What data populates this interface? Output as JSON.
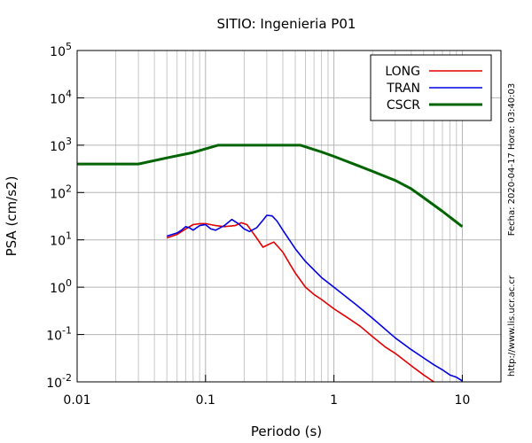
{
  "chart_data": {
    "type": "line",
    "title": "SITIO: Ingenieria P01",
    "xlabel": "Periodo (s)",
    "ylabel": "PSA (cm/s2)",
    "x_scale": "log",
    "y_scale": "log",
    "xlim": [
      0.01,
      20
    ],
    "ylim": [
      0.01,
      100000
    ],
    "x_ticks": [
      {
        "value": 0.01,
        "label": "0.01"
      },
      {
        "value": 0.1,
        "label": "0.1"
      },
      {
        "value": 1,
        "label": "1"
      },
      {
        "value": 10,
        "label": "10"
      }
    ],
    "y_ticks": [
      {
        "value": 0.01,
        "base": "10",
        "exp": "-2"
      },
      {
        "value": 0.1,
        "base": "10",
        "exp": "-1"
      },
      {
        "value": 1,
        "base": "10",
        "exp": "0"
      },
      {
        "value": 10,
        "base": "10",
        "exp": "1"
      },
      {
        "value": 100,
        "base": "10",
        "exp": "2"
      },
      {
        "value": 1000,
        "base": "10",
        "exp": "3"
      },
      {
        "value": 10000,
        "base": "10",
        "exp": "4"
      },
      {
        "value": 100000,
        "base": "10",
        "exp": "5"
      }
    ],
    "grid": true,
    "legend_position": "top-right",
    "series": [
      {
        "name": "LONG",
        "color": "#e00000",
        "x": [
          0.05,
          0.06,
          0.07,
          0.08,
          0.09,
          0.1,
          0.12,
          0.14,
          0.17,
          0.19,
          0.21,
          0.23,
          0.25,
          0.28,
          0.31,
          0.34,
          0.37,
          0.4,
          0.45,
          0.5,
          0.6,
          0.7,
          0.8,
          1.0,
          1.3,
          1.6,
          2.0,
          2.5,
          3.0,
          4.0,
          5.0,
          6.0
        ],
        "y": [
          11,
          13,
          17,
          21,
          22,
          22,
          20,
          19,
          20,
          23,
          21,
          15,
          11,
          7,
          8,
          9,
          7,
          5.5,
          3.2,
          2.0,
          1.0,
          0.7,
          0.55,
          0.35,
          0.22,
          0.15,
          0.09,
          0.055,
          0.04,
          0.022,
          0.014,
          0.0095
        ]
      },
      {
        "name": "TRAN",
        "color": "#0000e0",
        "x": [
          0.05,
          0.06,
          0.065,
          0.07,
          0.075,
          0.08,
          0.09,
          0.1,
          0.11,
          0.12,
          0.13,
          0.14,
          0.16,
          0.18,
          0.2,
          0.22,
          0.25,
          0.28,
          0.3,
          0.33,
          0.36,
          0.4,
          0.5,
          0.6,
          0.8,
          1.0,
          1.5,
          2.0,
          3.0,
          4.0,
          5.0,
          6.0,
          7.0,
          8.0,
          9.0,
          10.0
        ],
        "y": [
          12,
          14,
          16,
          19,
          18,
          16,
          20,
          21,
          17,
          16,
          18,
          20,
          27,
          22,
          17,
          15,
          18,
          26,
          33,
          32,
          25,
          16,
          6.5,
          3.5,
          1.6,
          1.0,
          0.42,
          0.22,
          0.085,
          0.048,
          0.032,
          0.023,
          0.018,
          0.014,
          0.0125,
          0.0105
        ]
      },
      {
        "name": "CSCR",
        "color": "#006400",
        "x": [
          0.01,
          0.03,
          0.05,
          0.08,
          0.125,
          0.55,
          0.8,
          1.0,
          1.5,
          2.0,
          3.0,
          4.0,
          5.0,
          7.0,
          10.0
        ],
        "y": [
          400,
          400,
          540,
          700,
          1000,
          1000,
          720,
          580,
          380,
          280,
          180,
          120,
          78,
          40,
          19
        ]
      }
    ],
    "side_text_date": "Fecha: 2020-04-17 Hora: 03:40:03",
    "side_text_url": "http://www.lis.ucr.ac.cr"
  }
}
